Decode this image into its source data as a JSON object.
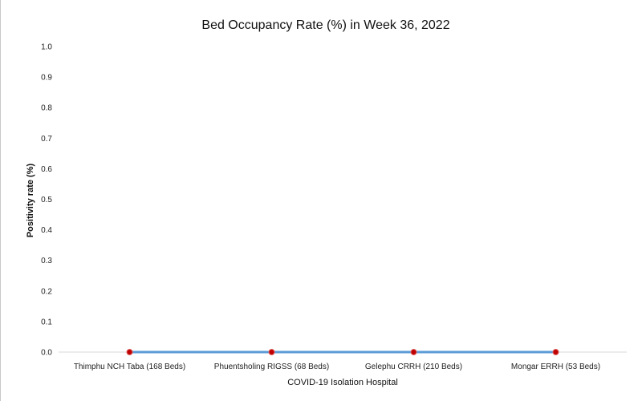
{
  "chart_data": {
    "type": "line",
    "title": "Bed Occupancy Rate (%) in Week 36, 2022",
    "xlabel": "COVID-19 Isolation Hospital",
    "ylabel": "Positivity rate (%)",
    "categories": [
      "Thimphu NCH Taba (168 Beds)",
      "Phuentsholing RIGSS (68 Beds)",
      "Gelephu CRRH (210 Beds)",
      "Mongar ERRH (53 Beds)"
    ],
    "series": [
      {
        "values": [
          0.0,
          0.0,
          0.0,
          0.0
        ]
      }
    ],
    "ylim": [
      0,
      1.0
    ],
    "yticks": [
      "0.0",
      "0.1",
      "0.2",
      "0.3",
      "0.4",
      "0.5",
      "0.6",
      "0.7",
      "0.8",
      "0.9",
      "1.0"
    ],
    "grid": false,
    "colors": {
      "line": "#5b9bd5",
      "marker": "#c00000",
      "axis": "#d9d9d9"
    }
  }
}
